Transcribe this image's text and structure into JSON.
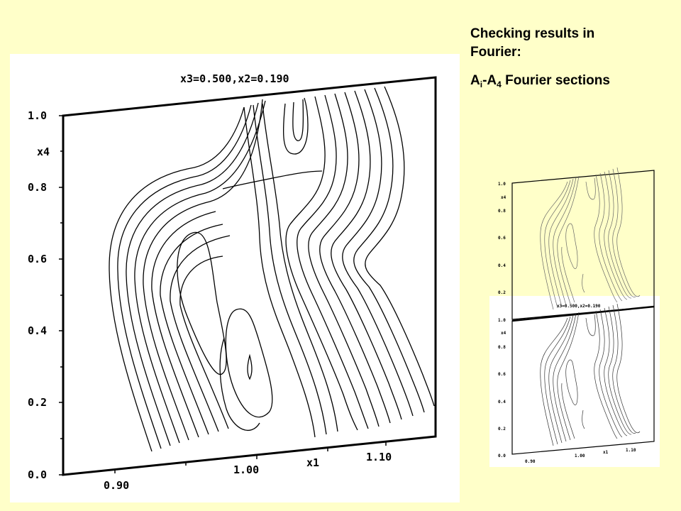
{
  "heading": {
    "line1": "Checking results in",
    "line2": "Fourier:",
    "sections_prefix": "A",
    "sections_sub1": "i",
    "sections_dash": "-A",
    "sections_sub2": "4",
    "sections_suffix": " Fourier sections"
  },
  "figure": {
    "title": "x3=0.500,x2=0.190",
    "x_axis_label": "x1",
    "y_axis_label": "x4",
    "x_ticks": [
      "0.90",
      "1.00",
      "1.10"
    ],
    "y_ticks": [
      "0.0",
      "0.2",
      "0.4",
      "0.6",
      "0.8",
      "1.0"
    ]
  },
  "thumbnail": {
    "description_colors": {
      "highlight": "#ffffc9",
      "frame": "#ffffff"
    }
  },
  "colors": {
    "background": "#ffffc9",
    "figure_bg": "#ffffff",
    "line": "#000000"
  }
}
